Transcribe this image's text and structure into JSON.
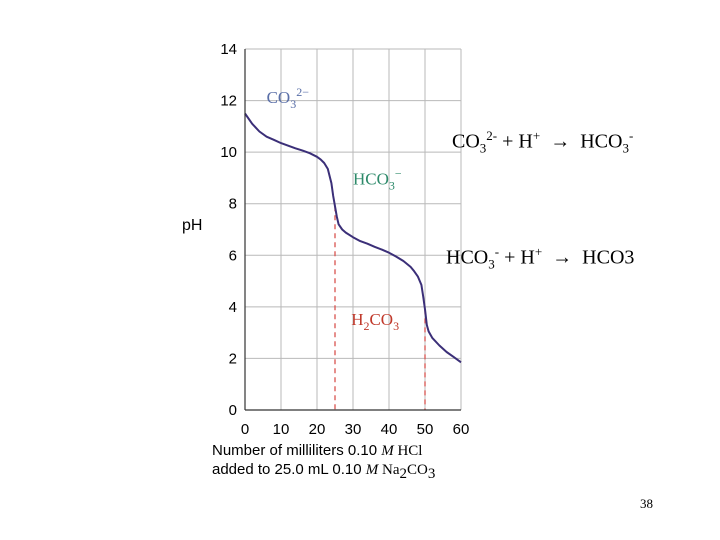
{
  "chart_data": {
    "type": "line",
    "xlabel_line1": [
      "Number of milliliters 0.10 ",
      "M",
      " HCl"
    ],
    "xlabel_line2": [
      "added to 25.0 mL 0.10 ",
      "M",
      " Na",
      "2",
      "CO",
      "3"
    ],
    "ylabel": "pH",
    "xlim": [
      0,
      60
    ],
    "ylim": [
      0,
      14
    ],
    "x_ticks": [
      "0",
      "10",
      "20",
      "30",
      "40",
      "50",
      "60"
    ],
    "y_ticks": [
      "0",
      "2",
      "4",
      "6",
      "8",
      "10",
      "12",
      "14"
    ],
    "highlight_tick": "50",
    "grid": true,
    "series": [
      {
        "x": [
          0,
          2,
          4,
          6,
          8,
          10,
          12,
          14,
          16,
          18,
          20,
          21,
          22,
          23,
          24,
          24.5,
          25,
          25.5,
          26,
          27,
          28,
          30,
          32,
          34,
          36,
          38,
          40,
          42,
          44,
          46,
          47,
          48,
          49,
          49.5,
          50,
          50.5,
          51,
          52,
          54,
          56,
          58,
          60
        ],
        "y": [
          11.5,
          11.1,
          10.8,
          10.6,
          10.48,
          10.35,
          10.25,
          10.15,
          10.06,
          9.96,
          9.82,
          9.72,
          9.58,
          9.35,
          8.8,
          8.3,
          7.9,
          7.5,
          7.2,
          7.0,
          6.88,
          6.7,
          6.55,
          6.45,
          6.33,
          6.22,
          6.1,
          5.95,
          5.78,
          5.55,
          5.38,
          5.18,
          4.85,
          4.4,
          3.9,
          3.3,
          3.05,
          2.8,
          2.5,
          2.25,
          2.05,
          1.85
        ],
        "color": "#3b2f78"
      }
    ],
    "equivalence_points": [
      {
        "x": 25,
        "y": 7.9
      },
      {
        "x": 50,
        "y": 3.9
      }
    ],
    "species_labels": [
      {
        "base": "CO",
        "sub": "3",
        "sup": "2−",
        "x": 6,
        "y": 11.9,
        "color": "#5a6fa8"
      },
      {
        "base": "HCO",
        "sub": "3",
        "sup": "−",
        "x": 30,
        "y": 8.75,
        "color": "#2d8a6a"
      },
      {
        "base": "H",
        "sub": "2",
        "tail": "CO",
        "sub2": "3",
        "x": 29.5,
        "y": 3.3,
        "color": "#c0392b"
      }
    ],
    "colors": {
      "curve": "#3b2f78",
      "grid": "#b9b9b9",
      "dashed": "#d9534f",
      "highlight": "#c0392b"
    }
  },
  "equations": {
    "eq1": {
      "a": "CO",
      "a_sub": "3",
      "a_sup": "2-",
      "b": " + H",
      "b_sup": "+",
      "arrow": "→",
      "c": "HCO",
      "c_sub": "3",
      "c_sup": "-"
    },
    "eq2": {
      "a": "HCO",
      "a_sub": "3",
      "a_sup": "-",
      "b": " + H",
      "b_sup": "+",
      "arrow": "→",
      "c": "HCO",
      "c_sub": "3"
    }
  },
  "slide_number": "38"
}
